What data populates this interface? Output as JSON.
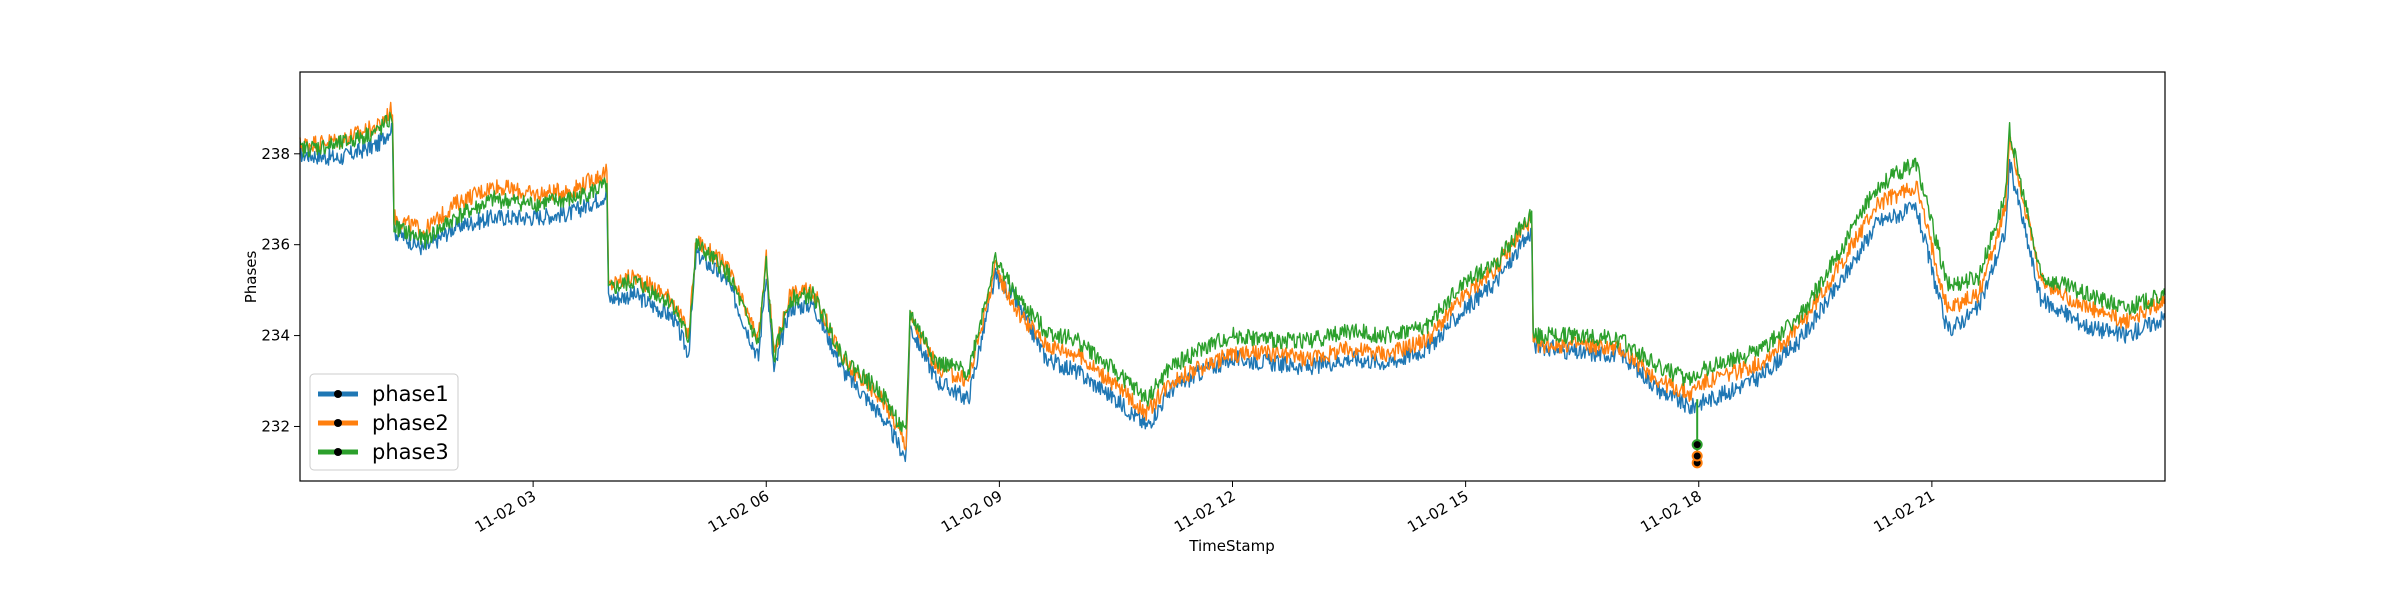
{
  "chart_data": {
    "type": "line",
    "xlabel": "TimeStamp",
    "ylabel": "Phases",
    "x_range_hours": [
      0.0,
      24.0
    ],
    "ylim": [
      230.8,
      239.8
    ],
    "x_ticks": [
      {
        "hour": 3,
        "label": "11-02 03"
      },
      {
        "hour": 6,
        "label": "11-02 06"
      },
      {
        "hour": 9,
        "label": "11-02 09"
      },
      {
        "hour": 12,
        "label": "11-02 12"
      },
      {
        "hour": 15,
        "label": "11-02 15"
      },
      {
        "hour": 18,
        "label": "11-02 18"
      },
      {
        "hour": 21,
        "label": "11-02 21"
      }
    ],
    "y_ticks": [
      232,
      234,
      236,
      238
    ],
    "grid": false,
    "legend_position": "lower-left",
    "x_hours": [
      0.0,
      0.5,
      1.0,
      1.19,
      1.21,
      1.6,
      2.0,
      2.5,
      3.0,
      3.5,
      3.95,
      3.97,
      4.3,
      4.8,
      5.0,
      5.1,
      5.5,
      5.9,
      6.0,
      6.1,
      6.3,
      6.6,
      7.0,
      7.5,
      7.8,
      7.85,
      8.2,
      8.6,
      8.95,
      9.2,
      9.6,
      10.0,
      10.5,
      10.9,
      11.2,
      11.6,
      12.0,
      12.5,
      13.0,
      13.5,
      14.0,
      14.5,
      15.0,
      15.4,
      15.85,
      15.87,
      16.5,
      17.0,
      17.5,
      17.9,
      17.97,
      18.3,
      18.8,
      19.3,
      19.8,
      20.3,
      20.8,
      21.2,
      21.6,
      21.95,
      22.0,
      22.4,
      23.0,
      23.5,
      24.0
    ],
    "series": [
      {
        "name": "phase1",
        "color": "#1f77b4",
        "values": [
          238.0,
          237.9,
          238.2,
          238.6,
          236.3,
          235.9,
          236.4,
          236.6,
          236.6,
          236.7,
          237.1,
          234.8,
          234.9,
          234.4,
          233.6,
          235.8,
          235.2,
          233.5,
          235.4,
          233.2,
          234.6,
          234.7,
          233.2,
          232.2,
          231.3,
          234.2,
          233.0,
          232.6,
          235.3,
          234.8,
          233.5,
          233.2,
          232.6,
          232.0,
          232.8,
          233.2,
          233.5,
          233.4,
          233.3,
          233.5,
          233.4,
          233.7,
          234.6,
          235.2,
          236.3,
          233.8,
          233.6,
          233.6,
          232.8,
          232.4,
          232.5,
          232.7,
          233.1,
          233.9,
          235.1,
          236.5,
          236.8,
          234.1,
          234.6,
          236.3,
          237.8,
          234.8,
          234.2,
          234.0,
          234.4
        ]
      },
      {
        "name": "phase2",
        "color": "#ff7f0e",
        "values": [
          238.2,
          238.3,
          238.6,
          239.0,
          236.6,
          236.3,
          236.9,
          237.3,
          237.1,
          237.2,
          237.6,
          235.1,
          235.3,
          234.8,
          234.0,
          236.1,
          235.5,
          233.9,
          235.7,
          233.6,
          234.9,
          235.0,
          233.4,
          232.6,
          231.6,
          234.4,
          233.3,
          233.0,
          235.5,
          234.6,
          233.8,
          233.6,
          232.9,
          232.3,
          233.0,
          233.3,
          233.6,
          233.6,
          233.5,
          233.7,
          233.6,
          233.9,
          234.9,
          235.5,
          236.6,
          233.8,
          233.8,
          233.7,
          233.0,
          232.7,
          232.9,
          233.1,
          233.4,
          234.2,
          235.5,
          236.9,
          237.3,
          234.6,
          234.9,
          236.8,
          238.4,
          235.2,
          234.6,
          234.3,
          234.8
        ]
      },
      {
        "name": "phase3",
        "color": "#2ca02c",
        "values": [
          238.1,
          238.2,
          238.5,
          238.8,
          236.4,
          236.1,
          236.6,
          237.0,
          236.9,
          237.0,
          237.3,
          235.0,
          235.2,
          234.7,
          233.9,
          236.0,
          235.4,
          233.8,
          235.6,
          233.5,
          234.8,
          234.9,
          233.5,
          232.7,
          231.8,
          234.5,
          233.4,
          233.2,
          235.7,
          234.9,
          234.1,
          233.9,
          233.2,
          232.6,
          233.3,
          233.7,
          234.0,
          233.9,
          233.9,
          234.1,
          234.0,
          234.2,
          235.2,
          235.6,
          236.7,
          234.0,
          234.0,
          233.9,
          233.3,
          233.0,
          233.2,
          233.4,
          233.7,
          234.4,
          235.8,
          237.3,
          237.8,
          235.1,
          235.3,
          237.1,
          238.5,
          235.3,
          234.9,
          234.6,
          234.9
        ]
      }
    ],
    "dip_markers": [
      {
        "hour": 17.98,
        "value": 231.2
      },
      {
        "hour": 17.98,
        "value": 231.35
      },
      {
        "hour": 17.98,
        "value": 231.6
      }
    ]
  }
}
